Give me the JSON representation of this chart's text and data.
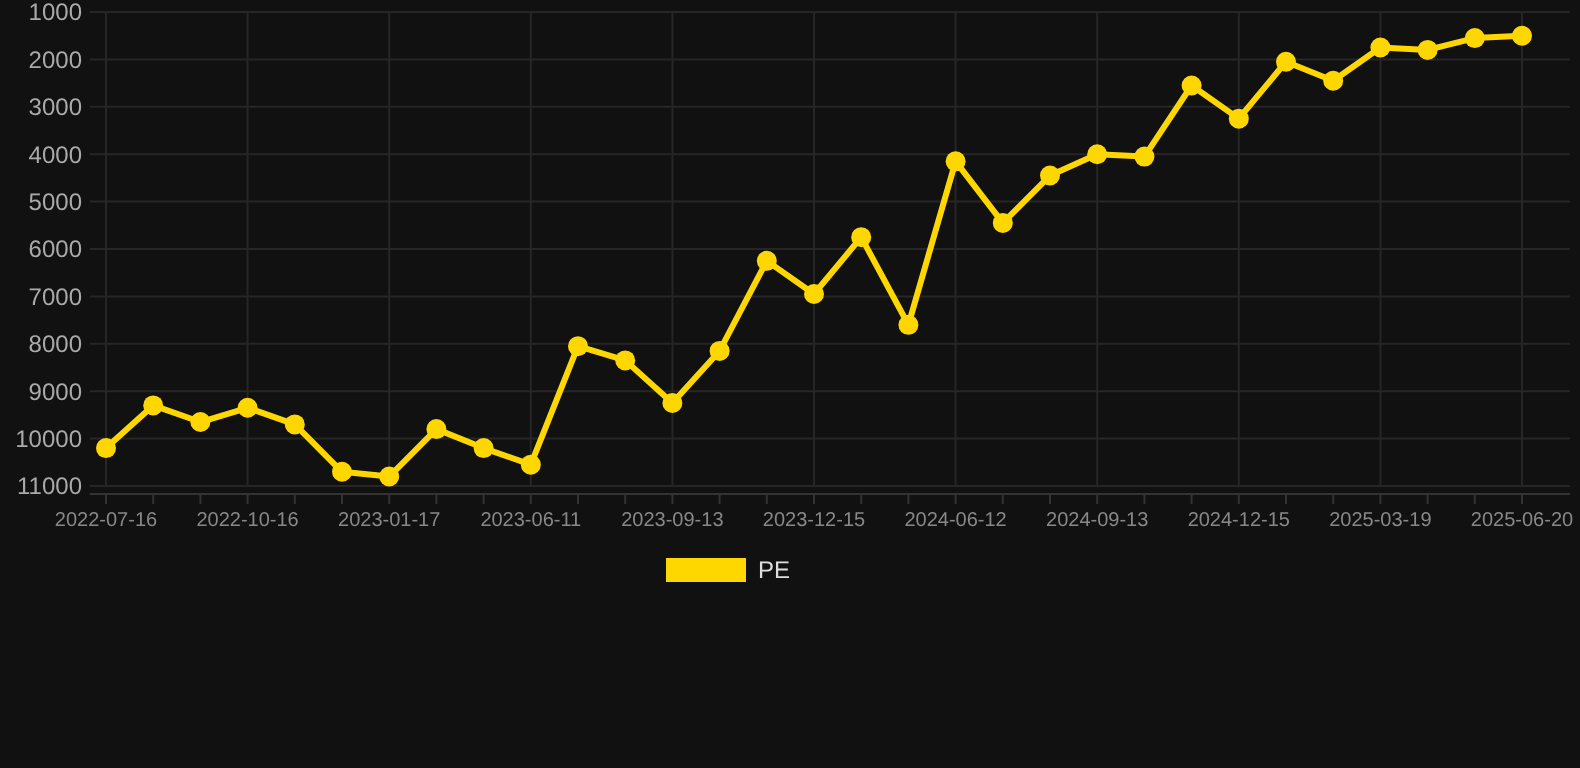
{
  "chart_data": {
    "type": "line",
    "categories": [
      "2022-07-16",
      null,
      null,
      "2022-10-16",
      null,
      null,
      "2023-01-17",
      null,
      null,
      "2023-06-11",
      null,
      null,
      "2023-09-13",
      null,
      null,
      "2023-12-15",
      null,
      null,
      "2024-06-12",
      null,
      null,
      "2024-09-13",
      null,
      null,
      "2024-12-15",
      null,
      null,
      "2025-03-19",
      null,
      null,
      "2025-06-20"
    ],
    "series": [
      {
        "name": "PE",
        "color": "#ffd700",
        "values": [
          10200,
          9300,
          9650,
          9350,
          9700,
          10700,
          10800,
          9800,
          10200,
          10550,
          8050,
          8350,
          9250,
          8150,
          6250,
          6950,
          5750,
          7600,
          4150,
          5450,
          4450,
          4000,
          4050,
          2550,
          3250,
          2050,
          2450,
          1750,
          1800,
          1550,
          1500
        ]
      }
    ],
    "ylim": [
      11000,
      1000
    ],
    "yticks": [
      1000,
      2000,
      3000,
      4000,
      5000,
      6000,
      7000,
      8000,
      9000,
      10000,
      11000
    ],
    "grid": true,
    "legend": "bottom",
    "marker": "circle",
    "line_style": "solid"
  }
}
